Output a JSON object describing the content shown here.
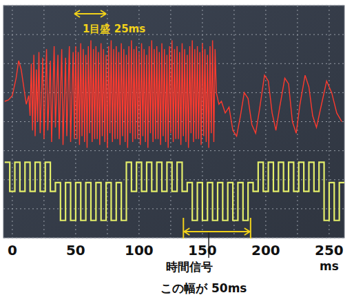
{
  "chart_data": {
    "type": "line",
    "xlabel": "ms",
    "xlim": [
      -7,
      262
    ],
    "xticks": [
      0,
      50,
      100,
      150,
      200,
      250
    ],
    "ylim": [
      -4,
      4
    ],
    "yticks": [
      -4,
      -3,
      -2,
      -1,
      0,
      1,
      2,
      3,
      4
    ],
    "grid": true,
    "tick_labels": "x",
    "annotations": [
      {
        "text": "1目盛 25ms",
        "x": [
          49,
          74
        ]
      },
      {
        "text": "時間信号",
        "x": [
          135,
          188
        ]
      },
      {
        "text": "この幅が 50ms"
      }
    ],
    "series": [
      {
        "color": "#ff3a2e",
        "x": [
          -6,
          -3,
          0,
          3,
          5,
          7,
          9,
          11,
          13,
          14,
          15,
          16,
          17,
          18,
          19,
          20,
          21,
          22,
          24,
          25,
          27,
          28,
          30,
          31,
          33,
          34,
          36,
          37,
          39,
          40,
          42,
          43,
          45,
          46,
          48,
          49,
          50,
          51,
          52,
          53,
          54,
          55,
          56,
          57,
          58,
          59,
          60,
          61,
          62,
          63,
          64,
          65,
          66,
          67,
          68,
          69,
          70,
          71,
          72,
          73,
          74,
          75,
          76,
          77,
          78,
          79,
          80,
          81,
          82,
          83,
          84,
          85,
          86,
          87,
          88,
          89,
          90,
          91,
          92,
          93,
          94,
          95,
          96,
          97,
          98,
          99,
          100,
          101,
          102,
          103,
          104,
          105,
          106,
          107,
          108,
          109,
          110,
          111,
          112,
          113,
          114,
          115,
          116,
          117,
          118,
          119,
          120,
          121,
          122,
          123,
          124,
          125,
          126,
          127,
          128,
          129,
          130,
          131,
          132,
          133,
          134,
          135,
          136,
          137,
          138,
          139,
          140,
          141,
          142,
          143,
          144,
          145,
          146,
          147,
          148,
          149,
          150,
          151,
          152,
          153,
          154,
          155,
          156,
          157,
          158,
          159,
          160,
          161,
          163,
          165,
          168,
          171,
          174,
          177,
          180,
          183,
          186,
          189,
          192,
          195,
          199,
          202,
          205,
          208,
          211,
          215,
          218,
          221,
          224,
          227,
          231,
          234,
          237,
          240,
          244,
          248,
          252,
          256,
          260
        ],
        "values": [
          0.7,
          0.75,
          0.9,
          1.5,
          2.1,
          1.8,
          1.2,
          0.6,
          0.9,
          0.2,
          2.0,
          -0.3,
          2.3,
          -0.5,
          1.8,
          0.0,
          2.4,
          -0.4,
          2.2,
          -0.6,
          2.5,
          -0.3,
          2.1,
          -0.7,
          2.6,
          -0.2,
          2.3,
          -0.6,
          2.5,
          -0.8,
          2.2,
          -0.5,
          2.6,
          -0.7,
          2.4,
          -0.6,
          2.6,
          -0.6,
          2.4,
          -0.8,
          2.7,
          -0.5,
          2.5,
          -0.7,
          2.3,
          -0.9,
          2.6,
          -0.4,
          2.8,
          -0.7,
          2.5,
          -0.6,
          2.6,
          -0.6,
          2.4,
          -0.8,
          2.7,
          -0.5,
          2.5,
          -0.7,
          2.3,
          -0.9,
          2.6,
          -0.4,
          2.8,
          -0.7,
          2.5,
          -0.6,
          2.6,
          -0.6,
          2.4,
          -0.8,
          2.7,
          -0.5,
          2.5,
          -0.7,
          2.3,
          -0.9,
          2.6,
          -0.4,
          2.8,
          -0.7,
          2.5,
          -0.6,
          2.6,
          -0.6,
          2.4,
          -0.8,
          2.7,
          -0.5,
          2.5,
          -0.7,
          2.3,
          -0.9,
          2.6,
          -0.4,
          2.8,
          -0.7,
          2.5,
          -0.6,
          2.6,
          -0.6,
          2.4,
          -0.8,
          2.7,
          -0.5,
          2.5,
          -0.7,
          2.3,
          -0.9,
          2.6,
          -0.4,
          2.8,
          -0.7,
          2.5,
          -0.6,
          2.6,
          -0.6,
          2.4,
          -0.8,
          2.7,
          -0.5,
          2.5,
          -0.7,
          2.3,
          -0.9,
          2.6,
          -0.4,
          2.8,
          -0.7,
          2.5,
          -0.6,
          2.6,
          -0.6,
          2.4,
          -0.8,
          2.7,
          -0.5,
          2.5,
          -0.7,
          2.3,
          -0.9,
          2.6,
          -0.4,
          2.8,
          -0.7,
          2.5,
          1.0,
          0.6,
          0.7,
          0.3,
          0.5,
          -0.3,
          -0.5,
          0.2,
          1.0,
          0.8,
          -0.1,
          -0.4,
          0.4,
          1.6,
          1.4,
          0.3,
          -0.3,
          0.5,
          1.5,
          1.3,
          0.0,
          -0.4,
          0.6,
          1.6,
          1.2,
          0.2,
          -0.2,
          0.6,
          1.4,
          1.0,
          0.3,
          0.0
        ]
      },
      {
        "color": "#e4ee6a",
        "line_style": "step",
        "x": [
          -6,
          -2,
          2,
          6,
          10,
          14,
          18,
          22,
          26,
          30,
          34,
          38,
          42,
          46,
          50,
          54,
          58,
          62,
          66,
          70,
          74,
          78,
          82,
          86,
          90,
          94,
          98,
          102,
          106,
          110,
          114,
          118,
          122,
          126,
          130,
          134,
          138,
          142,
          146,
          150,
          154,
          158,
          162,
          166,
          170,
          174,
          178,
          182,
          186,
          190,
          194,
          198,
          202,
          206,
          210,
          214,
          218,
          222,
          226,
          230,
          234,
          238,
          242,
          246,
          250,
          254,
          258
        ],
        "values": [
          -1.4,
          -2.4,
          -1.4,
          -2.4,
          -1.4,
          -2.4,
          -1.4,
          -2.4,
          -1.4,
          -2.4,
          -2.1,
          -3.4,
          -2.1,
          -3.4,
          -2.1,
          -3.4,
          -2.1,
          -3.4,
          -2.1,
          -3.4,
          -2.1,
          -3.4,
          -2.1,
          -3.4,
          -1.4,
          -2.4,
          -1.4,
          -2.4,
          -1.4,
          -2.4,
          -1.4,
          -2.4,
          -1.4,
          -2.4,
          -1.4,
          -2.4,
          -2.1,
          -3.4,
          -2.1,
          -3.4,
          -2.1,
          -3.4,
          -2.1,
          -3.4,
          -2.1,
          -3.4,
          -2.1,
          -3.4,
          -2.1,
          -2.4,
          -1.4,
          -2.4,
          -1.4,
          -2.4,
          -1.4,
          -2.4,
          -1.4,
          -2.4,
          -1.4,
          -2.4,
          -1.4,
          -2.4,
          -1.4,
          -3.4,
          -2.1,
          -3.4,
          -2.1
        ]
      }
    ]
  }
}
